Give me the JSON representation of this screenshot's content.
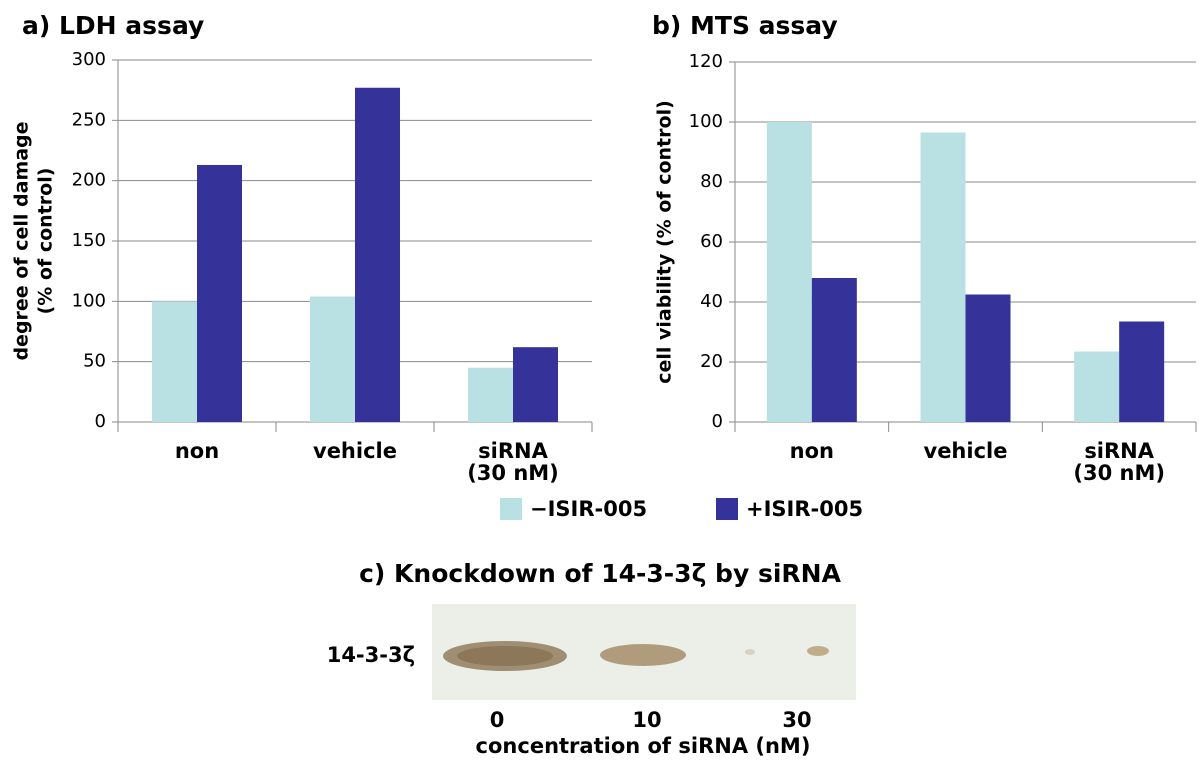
{
  "chart_data": [
    {
      "type": "bar",
      "title": "a) LDH assay",
      "ylabel": [
        "degree of cell damage",
        "(% of control)"
      ],
      "categories": [
        [
          "non"
        ],
        [
          "vehicle"
        ],
        [
          "siRNA",
          "(30 nM)"
        ]
      ],
      "series": [
        {
          "values": [
            100,
            104,
            45
          ]
        },
        {
          "values": [
            213,
            277,
            62
          ]
        }
      ],
      "ylim": [
        0,
        300
      ],
      "yticks": [
        0,
        50,
        100,
        150,
        200,
        250,
        300
      ],
      "grid": true
    },
    {
      "type": "bar",
      "title": "b) MTS assay",
      "ylabel": [
        "cell viability (% of control)"
      ],
      "categories": [
        [
          "non"
        ],
        [
          "vehicle"
        ],
        [
          "siRNA",
          "(30 nM)"
        ]
      ],
      "series": [
        {
          "values": [
            100,
            96.5,
            23.5
          ]
        },
        {
          "values": [
            48,
            42.5,
            33.5
          ]
        }
      ],
      "ylim": [
        0,
        120
      ],
      "yticks": [
        0,
        20,
        40,
        60,
        80,
        100,
        120
      ],
      "grid": true
    }
  ],
  "legend": [
    {
      "name": "−ISIR-005",
      "color": "#b9e0e2"
    },
    {
      "name": "+ISIR-005",
      "color": "#35339a"
    }
  ],
  "blot": {
    "title": "c) Knockdown of 14-3-3ζ by siRNA",
    "band_label": "14-3-3ζ",
    "lanes": [
      0,
      10,
      30
    ],
    "xlabel": "concentration of siRNA (nM)"
  }
}
